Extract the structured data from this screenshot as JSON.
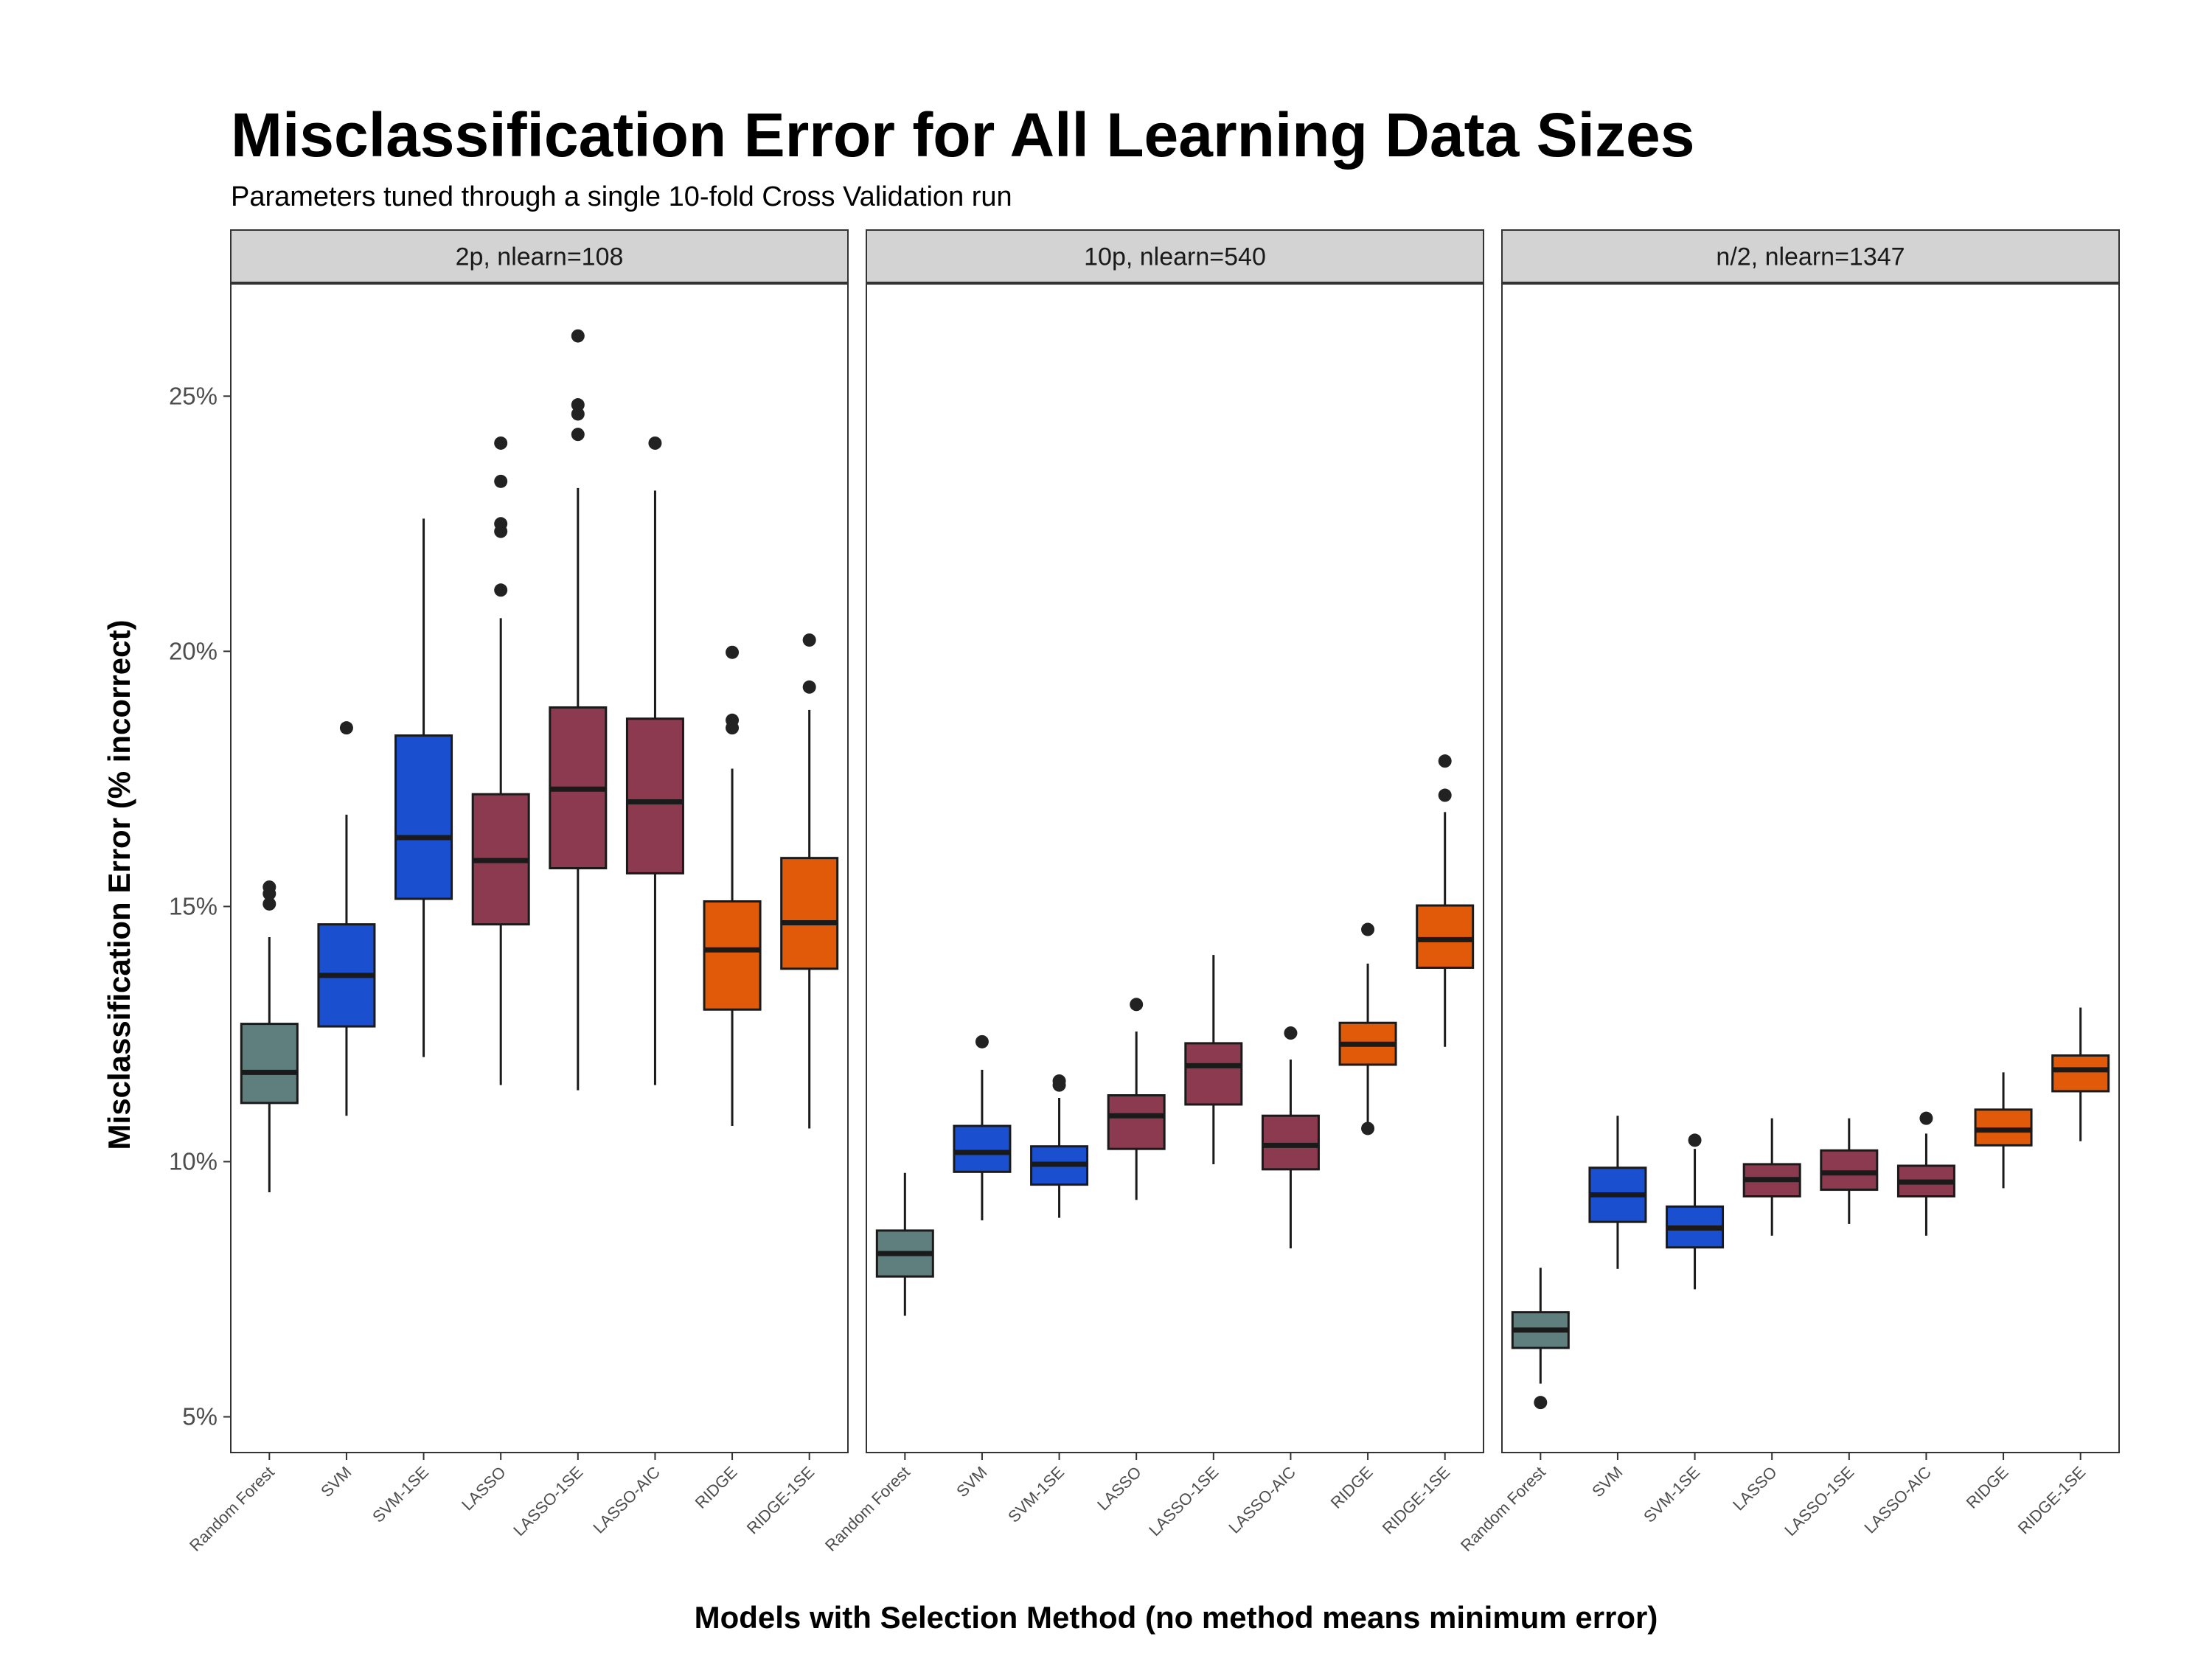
{
  "chart_data": {
    "type": "box",
    "title": "Misclassification Error for All Learning Data Sizes",
    "subtitle": "Parameters tuned through a single 10-fold Cross Validation run",
    "xlabel": "Models with Selection Method (no method means minimum error)",
    "ylabel": "Misclassification Error (% incorrect)",
    "ylim": [
      0.043,
      0.272
    ],
    "yticks": [
      0.05,
      0.1,
      0.15,
      0.2,
      0.25
    ],
    "ytick_labels": [
      "5%",
      "10%",
      "15%",
      "20%",
      "25%"
    ],
    "grid": false,
    "legend": "none",
    "categories": [
      "Random Forest",
      "SVM",
      "SVM-1SE",
      "LASSO",
      "LASSO-1SE",
      "LASSO-AIC",
      "RIDGE",
      "RIDGE-1SE"
    ],
    "category_colors": [
      "#5F7F7F",
      "#1A50D0",
      "#1A50D0",
      "#8B3A50",
      "#8B3A50",
      "#8B3A50",
      "#E05A0A",
      "#E05A0A"
    ],
    "panels": [
      {
        "label": "2p, nlearn=108",
        "boxes": [
          {
            "category": "Random Forest",
            "lower_whisker": 0.094,
            "q1": 0.1115,
            "median": 0.1175,
            "q3": 0.127,
            "upper_whisker": 0.144,
            "outliers": [
              0.1505,
              0.1525,
              0.1538
            ]
          },
          {
            "category": "SVM",
            "lower_whisker": 0.109,
            "q1": 0.1265,
            "median": 0.1365,
            "q3": 0.1465,
            "upper_whisker": 0.168,
            "outliers": [
              0.185
            ]
          },
          {
            "category": "SVM-1SE",
            "lower_whisker": 0.1205,
            "q1": 0.1515,
            "median": 0.1635,
            "q3": 0.1835,
            "upper_whisker": 0.226,
            "outliers": []
          },
          {
            "category": "LASSO",
            "lower_whisker": 0.115,
            "q1": 0.1465,
            "median": 0.159,
            "q3": 0.172,
            "upper_whisker": 0.2065,
            "outliers": [
              0.212,
              0.2235,
              0.225,
              0.2333,
              0.2408
            ]
          },
          {
            "category": "LASSO-1SE",
            "lower_whisker": 0.114,
            "q1": 0.1575,
            "median": 0.173,
            "q3": 0.189,
            "upper_whisker": 0.232,
            "outliers": [
              0.2425,
              0.2465,
              0.2483,
              0.2618
            ]
          },
          {
            "category": "LASSO-AIC",
            "lower_whisker": 0.115,
            "q1": 0.1565,
            "median": 0.1705,
            "q3": 0.1868,
            "upper_whisker": 0.2315,
            "outliers": [
              0.2408
            ]
          },
          {
            "category": "RIDGE",
            "lower_whisker": 0.107,
            "q1": 0.1298,
            "median": 0.1415,
            "q3": 0.151,
            "upper_whisker": 0.177,
            "outliers": [
              0.185,
              0.1865,
              0.1998
            ]
          },
          {
            "category": "RIDGE-1SE",
            "lower_whisker": 0.1065,
            "q1": 0.1378,
            "median": 0.1468,
            "q3": 0.1595,
            "upper_whisker": 0.1885,
            "outliers": [
              0.193,
              0.2022
            ]
          }
        ]
      },
      {
        "label": "10p, nlearn=540",
        "boxes": [
          {
            "category": "Random Forest",
            "lower_whisker": 0.0698,
            "q1": 0.0775,
            "median": 0.082,
            "q3": 0.0865,
            "upper_whisker": 0.0978,
            "outliers": []
          },
          {
            "category": "SVM",
            "lower_whisker": 0.0885,
            "q1": 0.098,
            "median": 0.1018,
            "q3": 0.107,
            "upper_whisker": 0.118,
            "outliers": [
              0.1235
            ]
          },
          {
            "category": "SVM-1SE",
            "lower_whisker": 0.089,
            "q1": 0.0955,
            "median": 0.0995,
            "q3": 0.103,
            "upper_whisker": 0.1125,
            "outliers": [
              0.115,
              0.1158
            ]
          },
          {
            "category": "LASSO",
            "lower_whisker": 0.0925,
            "q1": 0.1025,
            "median": 0.109,
            "q3": 0.113,
            "upper_whisker": 0.1255,
            "outliers": [
              0.1308
            ]
          },
          {
            "category": "LASSO-1SE",
            "lower_whisker": 0.0995,
            "q1": 0.1112,
            "median": 0.1188,
            "q3": 0.1232,
            "upper_whisker": 0.1405,
            "outliers": []
          },
          {
            "category": "LASSO-AIC",
            "lower_whisker": 0.083,
            "q1": 0.0985,
            "median": 0.1032,
            "q3": 0.109,
            "upper_whisker": 0.12,
            "outliers": [
              0.1252
            ]
          },
          {
            "category": "RIDGE",
            "lower_whisker": 0.1075,
            "q1": 0.119,
            "median": 0.123,
            "q3": 0.1272,
            "upper_whisker": 0.1388,
            "outliers": [
              0.1065,
              0.1455
            ]
          },
          {
            "category": "RIDGE-1SE",
            "lower_whisker": 0.1225,
            "q1": 0.138,
            "median": 0.1435,
            "q3": 0.1502,
            "upper_whisker": 0.1685,
            "outliers": [
              0.1718,
              0.1785
            ]
          }
        ]
      },
      {
        "label": "n/2, nlearn=1347",
        "boxes": [
          {
            "category": "Random Forest",
            "lower_whisker": 0.0565,
            "q1": 0.0635,
            "median": 0.067,
            "q3": 0.0705,
            "upper_whisker": 0.0792,
            "outliers": [
              0.0528
            ]
          },
          {
            "category": "SVM",
            "lower_whisker": 0.079,
            "q1": 0.0882,
            "median": 0.0935,
            "q3": 0.0988,
            "upper_whisker": 0.109,
            "outliers": []
          },
          {
            "category": "SVM-1SE",
            "lower_whisker": 0.075,
            "q1": 0.0832,
            "median": 0.087,
            "q3": 0.0912,
            "upper_whisker": 0.1025,
            "outliers": [
              0.1042
            ]
          },
          {
            "category": "LASSO",
            "lower_whisker": 0.0855,
            "q1": 0.0932,
            "median": 0.0965,
            "q3": 0.0995,
            "upper_whisker": 0.1085,
            "outliers": []
          },
          {
            "category": "LASSO-1SE",
            "lower_whisker": 0.0878,
            "q1": 0.0945,
            "median": 0.0978,
            "q3": 0.1022,
            "upper_whisker": 0.1085,
            "outliers": []
          },
          {
            "category": "LASSO-AIC",
            "lower_whisker": 0.0855,
            "q1": 0.0932,
            "median": 0.096,
            "q3": 0.0992,
            "upper_whisker": 0.1055,
            "outliers": [
              0.1085
            ]
          },
          {
            "category": "RIDGE",
            "lower_whisker": 0.0948,
            "q1": 0.1032,
            "median": 0.1062,
            "q3": 0.1102,
            "upper_whisker": 0.1175,
            "outliers": []
          },
          {
            "category": "RIDGE-1SE",
            "lower_whisker": 0.104,
            "q1": 0.1138,
            "median": 0.118,
            "q3": 0.1208,
            "upper_whisker": 0.1302,
            "outliers": []
          }
        ]
      }
    ]
  }
}
